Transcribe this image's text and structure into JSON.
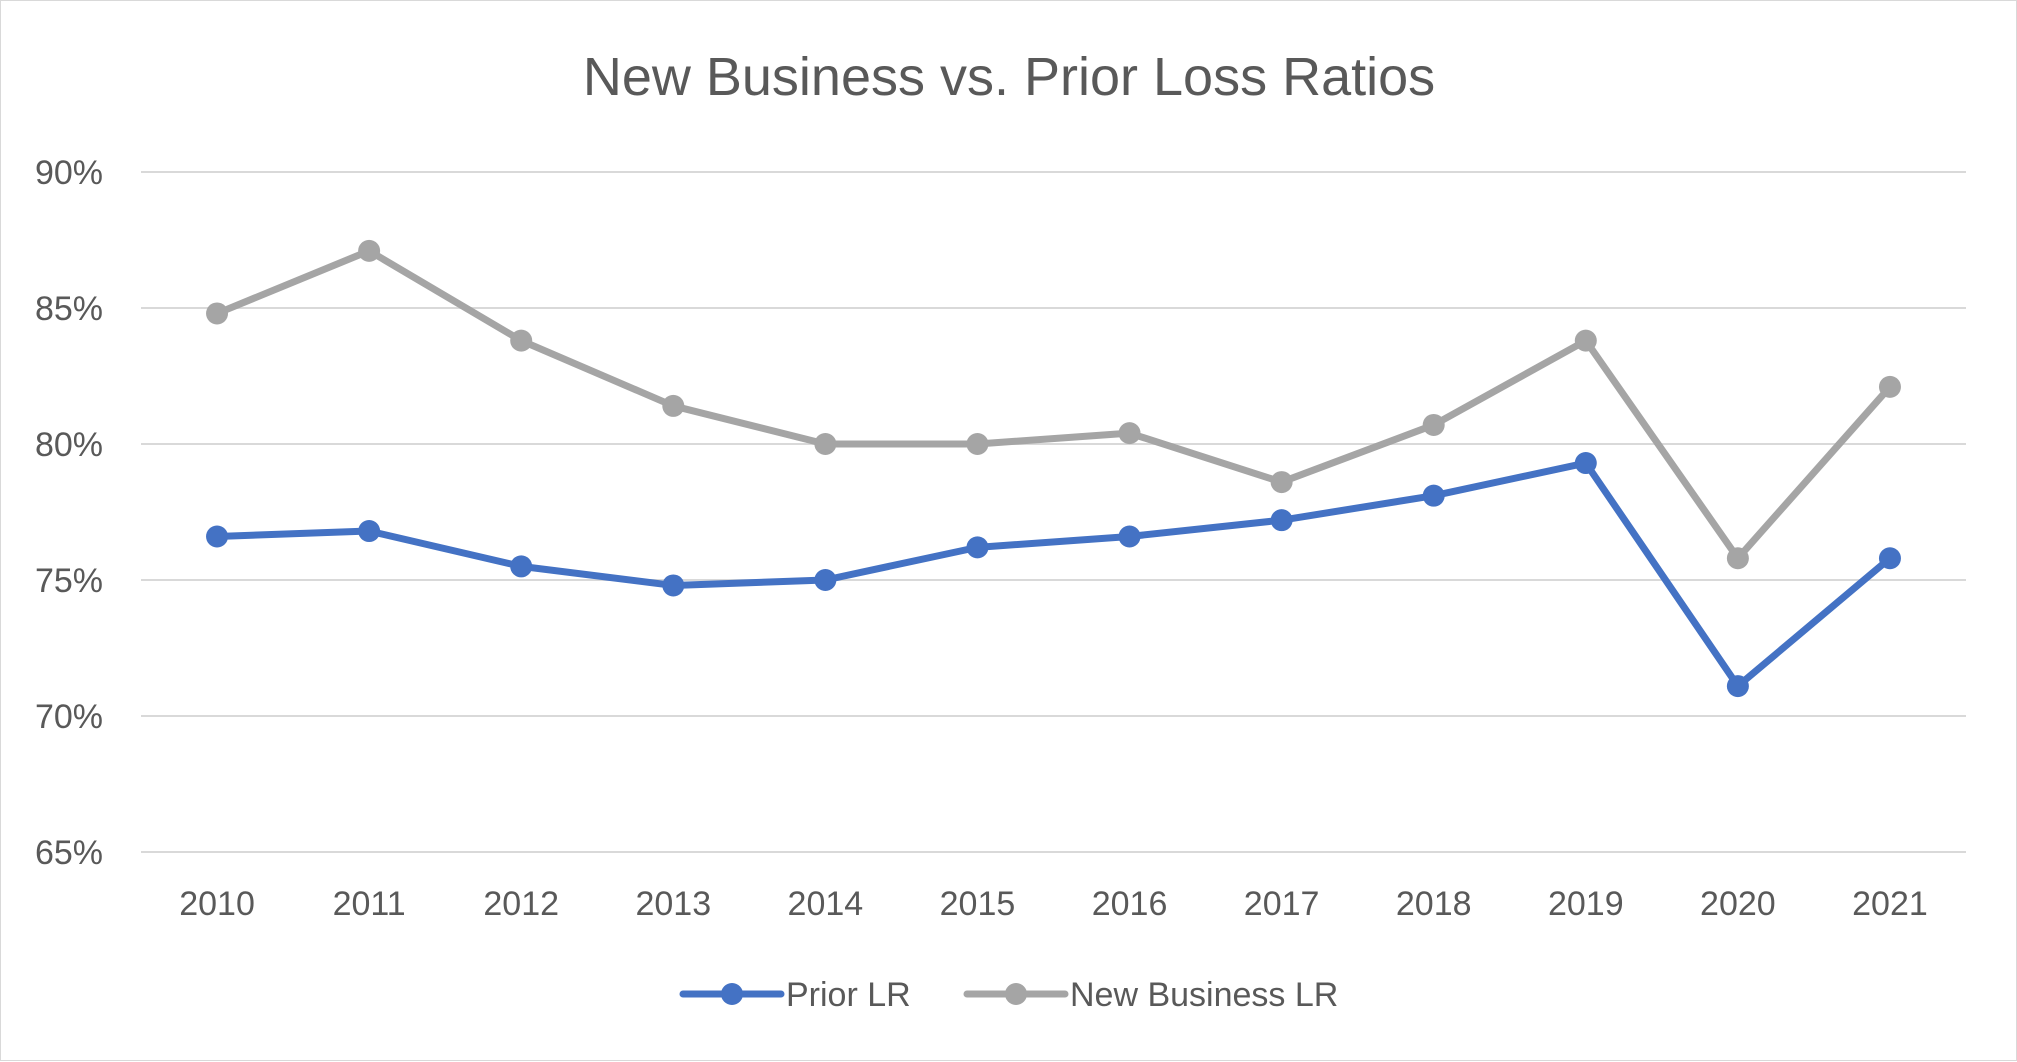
{
  "chart_data": {
    "type": "line",
    "title": "New Business vs. Prior Loss Ratios",
    "xlabel": "",
    "ylabel": "",
    "categories": [
      "2010",
      "2011",
      "2012",
      "2013",
      "2014",
      "2015",
      "2016",
      "2017",
      "2018",
      "2019",
      "2020",
      "2021"
    ],
    "y_ticks": [
      "65%",
      "70%",
      "75%",
      "80%",
      "85%",
      "90%"
    ],
    "ylim": [
      65,
      90
    ],
    "grid": true,
    "legend_position": "bottom",
    "series": [
      {
        "name": "Prior LR",
        "color": "#4472c4",
        "values": [
          76.6,
          76.8,
          75.5,
          74.8,
          75.0,
          76.2,
          76.6,
          77.2,
          78.1,
          79.3,
          71.1,
          75.8
        ]
      },
      {
        "name": "New Business LR",
        "color": "#a5a5a5",
        "values": [
          84.8,
          87.1,
          83.8,
          81.4,
          80.0,
          80.0,
          80.4,
          78.6,
          80.7,
          83.8,
          75.8,
          82.1
        ]
      }
    ]
  }
}
